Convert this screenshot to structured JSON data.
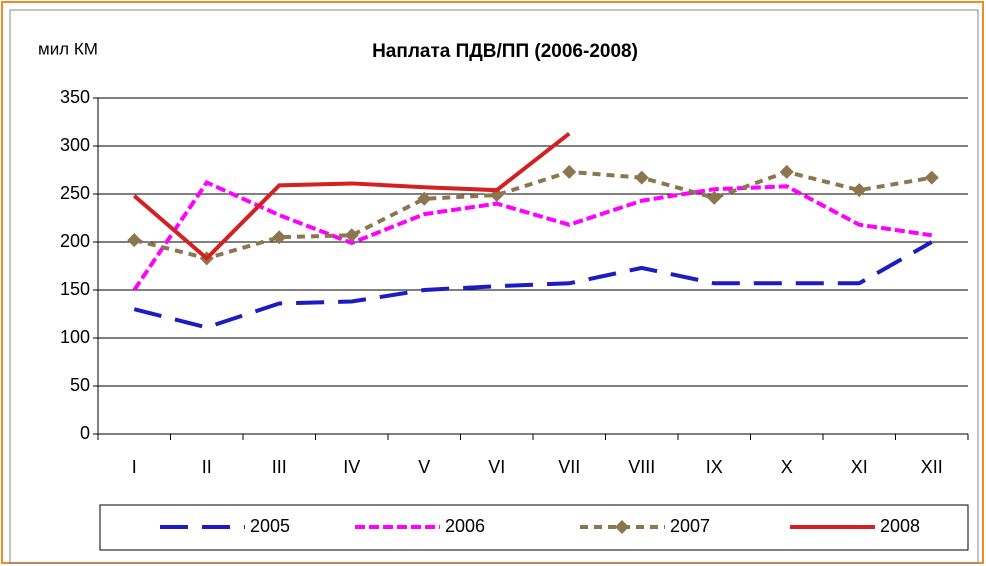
{
  "chart_data": {
    "type": "line",
    "title": "Наплата ПДВ/ПП (2006-2008)",
    "y_label": "мил КМ",
    "categories": [
      "I",
      "II",
      "III",
      "IV",
      "V",
      "VI",
      "VII",
      "VIII",
      "IX",
      "X",
      "XI",
      "XII"
    ],
    "ylim": [
      0,
      350
    ],
    "yticks": [
      0,
      50,
      100,
      150,
      200,
      250,
      300,
      350
    ],
    "grid": true,
    "legend": "bottom",
    "series": [
      {
        "name": "2005",
        "color": "#1c1cc0",
        "values": [
          130,
          111,
          136,
          138,
          150,
          154,
          157,
          173,
          157,
          157,
          157,
          200
        ]
      },
      {
        "name": "2006",
        "color": "#ff00ff",
        "values": [
          150,
          262,
          228,
          199,
          229,
          240,
          218,
          243,
          255,
          258,
          218,
          207
        ]
      },
      {
        "name": "2007",
        "color": "#8b7650",
        "values": [
          202,
          183,
          205,
          207,
          245,
          249,
          273,
          267,
          246,
          273,
          254,
          267
        ]
      },
      {
        "name": "2008",
        "color": "#d42020",
        "values": [
          248,
          183,
          259,
          261,
          257,
          254,
          313,
          null,
          null,
          null,
          null,
          null
        ]
      }
    ]
  }
}
